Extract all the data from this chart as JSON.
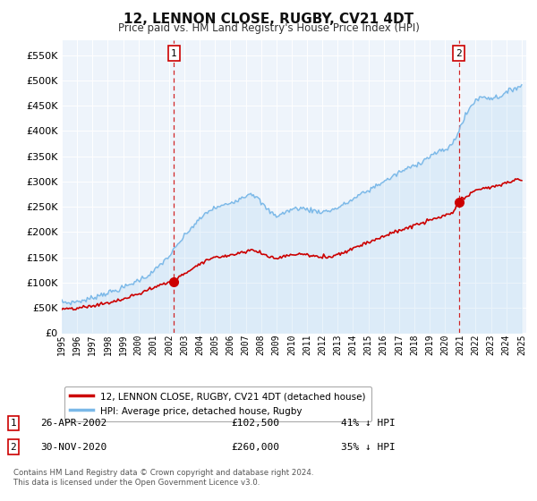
{
  "title": "12, LENNON CLOSE, RUGBY, CV21 4DT",
  "subtitle": "Price paid vs. HM Land Registry's House Price Index (HPI)",
  "ytick_values": [
    0,
    50000,
    100000,
    150000,
    200000,
    250000,
    300000,
    350000,
    400000,
    450000,
    500000,
    550000
  ],
  "ylim": [
    0,
    580000
  ],
  "x_start_year": 1995,
  "x_end_year": 2025,
  "hpi_color": "#7ab8e8",
  "hpi_fill_color": "#daeaf8",
  "price_color": "#cc0000",
  "marker1_price": 102500,
  "marker1_hpi_pct": "41% ↓ HPI",
  "marker1_date_label": "26-APR-2002",
  "marker1_x": 2002.32,
  "marker2_price": 260000,
  "marker2_hpi_pct": "35% ↓ HPI",
  "marker2_date_label": "30-NOV-2020",
  "marker2_x": 2020.92,
  "legend_label_price": "12, LENNON CLOSE, RUGBY, CV21 4DT (detached house)",
  "legend_label_hpi": "HPI: Average price, detached house, Rugby",
  "footer1": "Contains HM Land Registry data © Crown copyright and database right 2024.",
  "footer2": "This data is licensed under the Open Government Licence v3.0.",
  "background_color": "#ffffff",
  "plot_bg_color": "#eef4fb",
  "grid_color": "#ffffff",
  "annotation1_label": "1",
  "annotation2_label": "2",
  "hpi_keypoints": [
    [
      1995.0,
      62000
    ],
    [
      1995.5,
      60000
    ],
    [
      1996.0,
      63000
    ],
    [
      1996.5,
      65000
    ],
    [
      1997.0,
      70000
    ],
    [
      1997.5,
      76000
    ],
    [
      1998.0,
      80000
    ],
    [
      1998.5,
      84000
    ],
    [
      1999.0,
      90000
    ],
    [
      1999.5,
      97000
    ],
    [
      2000.0,
      105000
    ],
    [
      2000.5,
      112000
    ],
    [
      2001.0,
      122000
    ],
    [
      2001.5,
      138000
    ],
    [
      2002.0,
      152000
    ],
    [
      2002.5,
      172000
    ],
    [
      2003.0,
      192000
    ],
    [
      2003.5,
      210000
    ],
    [
      2004.0,
      225000
    ],
    [
      2004.5,
      240000
    ],
    [
      2005.0,
      248000
    ],
    [
      2005.5,
      252000
    ],
    [
      2006.0,
      258000
    ],
    [
      2006.5,
      265000
    ],
    [
      2007.0,
      272000
    ],
    [
      2007.3,
      278000
    ],
    [
      2007.7,
      270000
    ],
    [
      2008.0,
      258000
    ],
    [
      2008.5,
      242000
    ],
    [
      2009.0,
      232000
    ],
    [
      2009.5,
      238000
    ],
    [
      2010.0,
      245000
    ],
    [
      2010.5,
      248000
    ],
    [
      2011.0,
      245000
    ],
    [
      2011.5,
      242000
    ],
    [
      2012.0,
      240000
    ],
    [
      2012.5,
      243000
    ],
    [
      2013.0,
      248000
    ],
    [
      2013.5,
      256000
    ],
    [
      2014.0,
      265000
    ],
    [
      2014.5,
      275000
    ],
    [
      2015.0,
      282000
    ],
    [
      2015.5,
      292000
    ],
    [
      2016.0,
      300000
    ],
    [
      2016.5,
      308000
    ],
    [
      2017.0,
      318000
    ],
    [
      2017.5,
      325000
    ],
    [
      2018.0,
      332000
    ],
    [
      2018.5,
      340000
    ],
    [
      2019.0,
      350000
    ],
    [
      2019.5,
      358000
    ],
    [
      2020.0,
      362000
    ],
    [
      2020.5,
      375000
    ],
    [
      2021.0,
      408000
    ],
    [
      2021.5,
      440000
    ],
    [
      2022.0,
      462000
    ],
    [
      2022.5,
      468000
    ],
    [
      2023.0,
      465000
    ],
    [
      2023.5,
      468000
    ],
    [
      2024.0,
      475000
    ],
    [
      2024.5,
      485000
    ],
    [
      2025.0,
      490000
    ]
  ],
  "price_keypoints": [
    [
      1995.0,
      48000
    ],
    [
      1995.5,
      47000
    ],
    [
      1996.0,
      49000
    ],
    [
      1996.5,
      51000
    ],
    [
      1997.0,
      54000
    ],
    [
      1997.5,
      57000
    ],
    [
      1998.0,
      60000
    ],
    [
      1998.5,
      63000
    ],
    [
      1999.0,
      67000
    ],
    [
      1999.5,
      72000
    ],
    [
      2000.0,
      78000
    ],
    [
      2000.5,
      84000
    ],
    [
      2001.0,
      90000
    ],
    [
      2001.5,
      97000
    ],
    [
      2002.0,
      100000
    ],
    [
      2002.32,
      102500
    ],
    [
      2002.5,
      106000
    ],
    [
      2003.0,
      118000
    ],
    [
      2003.5,
      128000
    ],
    [
      2004.0,
      138000
    ],
    [
      2004.5,
      145000
    ],
    [
      2005.0,
      150000
    ],
    [
      2005.5,
      152000
    ],
    [
      2006.0,
      155000
    ],
    [
      2006.5,
      158000
    ],
    [
      2007.0,
      162000
    ],
    [
      2007.3,
      165000
    ],
    [
      2007.7,
      162000
    ],
    [
      2008.0,
      158000
    ],
    [
      2008.5,
      152000
    ],
    [
      2009.0,
      148000
    ],
    [
      2009.5,
      152000
    ],
    [
      2010.0,
      155000
    ],
    [
      2010.5,
      157000
    ],
    [
      2011.0,
      155000
    ],
    [
      2011.5,
      152000
    ],
    [
      2012.0,
      150000
    ],
    [
      2012.5,
      152000
    ],
    [
      2013.0,
      156000
    ],
    [
      2013.5,
      161000
    ],
    [
      2014.0,
      168000
    ],
    [
      2014.5,
      175000
    ],
    [
      2015.0,
      180000
    ],
    [
      2015.5,
      186000
    ],
    [
      2016.0,
      192000
    ],
    [
      2016.5,
      197000
    ],
    [
      2017.0,
      203000
    ],
    [
      2017.5,
      208000
    ],
    [
      2018.0,
      213000
    ],
    [
      2018.5,
      218000
    ],
    [
      2019.0,
      223000
    ],
    [
      2019.5,
      228000
    ],
    [
      2020.0,
      232000
    ],
    [
      2020.5,
      238000
    ],
    [
      2020.92,
      260000
    ],
    [
      2021.0,
      263000
    ],
    [
      2021.5,
      272000
    ],
    [
      2022.0,
      282000
    ],
    [
      2022.5,
      288000
    ],
    [
      2023.0,
      288000
    ],
    [
      2023.5,
      292000
    ],
    [
      2024.0,
      298000
    ],
    [
      2024.5,
      302000
    ],
    [
      2025.0,
      305000
    ]
  ]
}
